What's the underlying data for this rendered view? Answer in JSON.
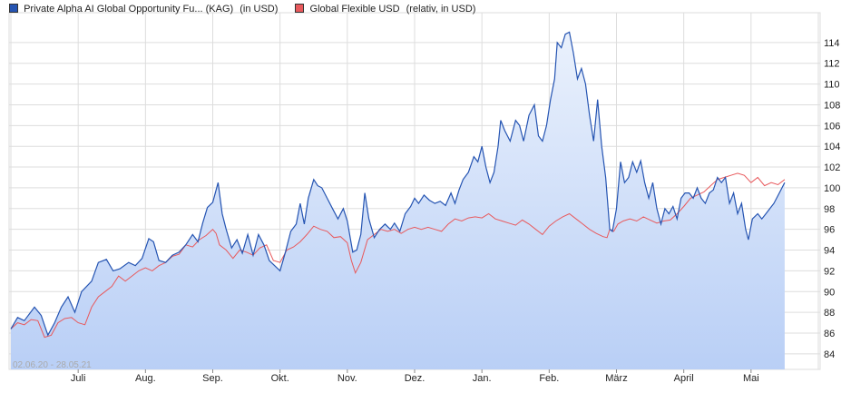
{
  "legend": {
    "series1_name": "Private Alpha AI Global Opportunity Fu... (KAG)",
    "series1_note": "(in USD)",
    "series2_name": "Global Flexible USD",
    "series2_note": "(relativ, in USD)"
  },
  "colors": {
    "series1": "#2554b2",
    "series1_fill_top": "#eaf1fc",
    "series1_fill_bottom": "#b9cff6",
    "series2": "#e8595c",
    "grid": "#dddddd",
    "axis_text": "#222222",
    "date_range_text": "#aaaaaa"
  },
  "chart_data": {
    "type": "line",
    "date_range_label": "02.06.20 - 28.05.21",
    "x_labels": [
      "Juli",
      "Aug.",
      "Sep.",
      "Okt.",
      "Nov.",
      "Dez.",
      "Jan.",
      "Feb.",
      "März",
      "April",
      "Mai"
    ],
    "x_range": [
      0,
      12
    ],
    "ylim": [
      82.5,
      116
    ],
    "y_ticks": [
      84,
      86,
      88,
      90,
      92,
      94,
      96,
      98,
      100,
      102,
      104,
      106,
      108,
      110,
      112,
      114
    ],
    "y_axis_position": "right",
    "grid": true,
    "legend_position": "top-left",
    "series": [
      {
        "name": "Private Alpha AI Global Opportunity Fu... (KAG)",
        "style": "line-with-area",
        "points": [
          [
            0,
            86.4
          ],
          [
            0.1,
            87.5
          ],
          [
            0.2,
            87.2
          ],
          [
            0.35,
            88.5
          ],
          [
            0.45,
            87.7
          ],
          [
            0.55,
            85.8
          ],
          [
            0.65,
            87.0
          ],
          [
            0.75,
            88.5
          ],
          [
            0.85,
            89.5
          ],
          [
            0.95,
            88.0
          ],
          [
            1.05,
            90.0
          ],
          [
            1.2,
            91.0
          ],
          [
            1.3,
            92.8
          ],
          [
            1.42,
            93.1
          ],
          [
            1.52,
            92.0
          ],
          [
            1.62,
            92.2
          ],
          [
            1.75,
            92.8
          ],
          [
            1.85,
            92.5
          ],
          [
            1.95,
            93.2
          ],
          [
            2.05,
            95.1
          ],
          [
            2.12,
            94.8
          ],
          [
            2.2,
            93.0
          ],
          [
            2.3,
            92.8
          ],
          [
            2.4,
            93.5
          ],
          [
            2.5,
            93.8
          ],
          [
            2.6,
            94.5
          ],
          [
            2.7,
            95.5
          ],
          [
            2.78,
            94.8
          ],
          [
            2.85,
            96.6
          ],
          [
            2.92,
            98.1
          ],
          [
            3.0,
            98.6
          ],
          [
            3.08,
            100.5
          ],
          [
            3.14,
            97.5
          ],
          [
            3.2,
            96.0
          ],
          [
            3.28,
            94.2
          ],
          [
            3.36,
            95.0
          ],
          [
            3.44,
            93.7
          ],
          [
            3.52,
            95.5
          ],
          [
            3.6,
            93.5
          ],
          [
            3.68,
            95.5
          ],
          [
            3.76,
            94.5
          ],
          [
            3.84,
            93.0
          ],
          [
            3.92,
            92.5
          ],
          [
            4.0,
            92.0
          ],
          [
            4.08,
            93.8
          ],
          [
            4.16,
            95.8
          ],
          [
            4.24,
            96.5
          ],
          [
            4.3,
            98.5
          ],
          [
            4.36,
            96.5
          ],
          [
            4.42,
            99.0
          ],
          [
            4.5,
            100.8
          ],
          [
            4.56,
            100.2
          ],
          [
            4.62,
            100.0
          ],
          [
            4.7,
            99.0
          ],
          [
            4.78,
            98.0
          ],
          [
            4.86,
            97.0
          ],
          [
            4.94,
            98.0
          ],
          [
            5.0,
            96.8
          ],
          [
            5.08,
            93.8
          ],
          [
            5.14,
            94.0
          ],
          [
            5.2,
            95.5
          ],
          [
            5.26,
            99.5
          ],
          [
            5.32,
            97.0
          ],
          [
            5.4,
            95.2
          ],
          [
            5.48,
            96.0
          ],
          [
            5.56,
            96.5
          ],
          [
            5.64,
            96.0
          ],
          [
            5.7,
            96.6
          ],
          [
            5.78,
            95.8
          ],
          [
            5.86,
            97.5
          ],
          [
            5.94,
            98.2
          ],
          [
            6.0,
            99.0
          ],
          [
            6.06,
            98.5
          ],
          [
            6.14,
            99.3
          ],
          [
            6.22,
            98.8
          ],
          [
            6.3,
            98.5
          ],
          [
            6.38,
            98.7
          ],
          [
            6.46,
            98.3
          ],
          [
            6.54,
            99.5
          ],
          [
            6.6,
            98.5
          ],
          [
            6.66,
            99.8
          ],
          [
            6.72,
            100.8
          ],
          [
            6.8,
            101.5
          ],
          [
            6.88,
            103.0
          ],
          [
            6.94,
            102.5
          ],
          [
            7.0,
            104.0
          ],
          [
            7.06,
            102.0
          ],
          [
            7.12,
            100.5
          ],
          [
            7.18,
            101.5
          ],
          [
            7.24,
            104.0
          ],
          [
            7.28,
            106.5
          ],
          [
            7.34,
            105.5
          ],
          [
            7.42,
            104.5
          ],
          [
            7.5,
            106.5
          ],
          [
            7.56,
            106.0
          ],
          [
            7.62,
            104.5
          ],
          [
            7.7,
            107.0
          ],
          [
            7.78,
            108.0
          ],
          [
            7.84,
            105.0
          ],
          [
            7.9,
            104.5
          ],
          [
            7.96,
            106.0
          ],
          [
            8.02,
            108.5
          ],
          [
            8.08,
            110.5
          ],
          [
            8.12,
            114.0
          ],
          [
            8.18,
            113.5
          ],
          [
            8.24,
            114.8
          ],
          [
            8.3,
            115.0
          ],
          [
            8.36,
            113.0
          ],
          [
            8.42,
            110.5
          ],
          [
            8.48,
            111.5
          ],
          [
            8.54,
            110.0
          ],
          [
            8.6,
            107.0
          ],
          [
            8.66,
            104.5
          ],
          [
            8.72,
            108.5
          ],
          [
            8.78,
            104.0
          ],
          [
            8.84,
            101.0
          ],
          [
            8.9,
            96.0
          ],
          [
            8.94,
            95.8
          ],
          [
            9.0,
            98.0
          ],
          [
            9.06,
            102.5
          ],
          [
            9.12,
            100.5
          ],
          [
            9.18,
            101.0
          ],
          [
            9.24,
            102.5
          ],
          [
            9.3,
            101.5
          ],
          [
            9.36,
            102.6
          ],
          [
            9.42,
            100.5
          ],
          [
            9.48,
            99.0
          ],
          [
            9.54,
            100.5
          ],
          [
            9.6,
            98.0
          ],
          [
            9.66,
            96.5
          ],
          [
            9.72,
            98.0
          ],
          [
            9.78,
            97.5
          ],
          [
            9.84,
            98.2
          ],
          [
            9.9,
            97.0
          ],
          [
            9.96,
            99.0
          ],
          [
            10.02,
            99.5
          ],
          [
            10.08,
            99.5
          ],
          [
            10.14,
            99.0
          ],
          [
            10.2,
            100.0
          ],
          [
            10.26,
            99.0
          ],
          [
            10.32,
            98.5
          ],
          [
            10.38,
            99.5
          ],
          [
            10.44,
            99.8
          ],
          [
            10.5,
            101.0
          ],
          [
            10.56,
            100.5
          ],
          [
            10.62,
            101.0
          ],
          [
            10.68,
            98.5
          ],
          [
            10.74,
            99.5
          ],
          [
            10.8,
            97.5
          ],
          [
            10.86,
            98.5
          ],
          [
            10.92,
            96.0
          ],
          [
            10.96,
            95.0
          ],
          [
            11.02,
            97.0
          ],
          [
            11.1,
            97.5
          ],
          [
            11.16,
            97.0
          ],
          [
            11.22,
            97.5
          ],
          [
            11.28,
            98.0
          ],
          [
            11.34,
            98.5
          ],
          [
            11.42,
            99.5
          ],
          [
            11.5,
            100.5
          ]
        ]
      },
      {
        "name": "Global Flexible USD",
        "style": "line",
        "points": [
          [
            0,
            86.4
          ],
          [
            0.1,
            87.0
          ],
          [
            0.2,
            86.8
          ],
          [
            0.3,
            87.3
          ],
          [
            0.4,
            87.2
          ],
          [
            0.5,
            85.6
          ],
          [
            0.6,
            85.8
          ],
          [
            0.7,
            87.0
          ],
          [
            0.8,
            87.4
          ],
          [
            0.9,
            87.5
          ],
          [
            1.0,
            87.0
          ],
          [
            1.1,
            86.8
          ],
          [
            1.2,
            88.5
          ],
          [
            1.3,
            89.5
          ],
          [
            1.4,
            90.0
          ],
          [
            1.5,
            90.5
          ],
          [
            1.6,
            91.5
          ],
          [
            1.7,
            91.0
          ],
          [
            1.8,
            91.5
          ],
          [
            1.9,
            92.0
          ],
          [
            2.0,
            92.3
          ],
          [
            2.1,
            92.0
          ],
          [
            2.2,
            92.5
          ],
          [
            2.3,
            92.8
          ],
          [
            2.4,
            93.4
          ],
          [
            2.5,
            93.6
          ],
          [
            2.6,
            94.5
          ],
          [
            2.7,
            94.3
          ],
          [
            2.8,
            95.0
          ],
          [
            2.9,
            95.4
          ],
          [
            3.0,
            96.0
          ],
          [
            3.05,
            95.6
          ],
          [
            3.1,
            94.5
          ],
          [
            3.2,
            94.0
          ],
          [
            3.3,
            93.2
          ],
          [
            3.4,
            94.0
          ],
          [
            3.5,
            93.8
          ],
          [
            3.6,
            93.5
          ],
          [
            3.7,
            94.2
          ],
          [
            3.8,
            94.5
          ],
          [
            3.9,
            93.0
          ],
          [
            4.0,
            92.8
          ],
          [
            4.1,
            94.0
          ],
          [
            4.2,
            94.3
          ],
          [
            4.3,
            94.8
          ],
          [
            4.4,
            95.5
          ],
          [
            4.5,
            96.3
          ],
          [
            4.6,
            96.0
          ],
          [
            4.7,
            95.8
          ],
          [
            4.8,
            95.2
          ],
          [
            4.9,
            95.3
          ],
          [
            5.0,
            94.7
          ],
          [
            5.06,
            93.0
          ],
          [
            5.12,
            91.8
          ],
          [
            5.2,
            92.8
          ],
          [
            5.3,
            95.0
          ],
          [
            5.4,
            95.5
          ],
          [
            5.5,
            96.0
          ],
          [
            5.6,
            95.8
          ],
          [
            5.7,
            96.0
          ],
          [
            5.8,
            95.6
          ],
          [
            5.9,
            96.0
          ],
          [
            6.0,
            96.2
          ],
          [
            6.1,
            96.0
          ],
          [
            6.2,
            96.2
          ],
          [
            6.3,
            96.0
          ],
          [
            6.4,
            95.8
          ],
          [
            6.5,
            96.5
          ],
          [
            6.6,
            97.0
          ],
          [
            6.7,
            96.8
          ],
          [
            6.8,
            97.1
          ],
          [
            6.9,
            97.2
          ],
          [
            7.0,
            97.1
          ],
          [
            7.1,
            97.5
          ],
          [
            7.2,
            97.0
          ],
          [
            7.3,
            96.8
          ],
          [
            7.4,
            96.6
          ],
          [
            7.5,
            96.4
          ],
          [
            7.6,
            96.9
          ],
          [
            7.7,
            96.5
          ],
          [
            7.8,
            96.0
          ],
          [
            7.9,
            95.5
          ],
          [
            8.0,
            96.3
          ],
          [
            8.1,
            96.8
          ],
          [
            8.2,
            97.2
          ],
          [
            8.3,
            97.5
          ],
          [
            8.4,
            97.0
          ],
          [
            8.5,
            96.5
          ],
          [
            8.6,
            96.0
          ],
          [
            8.7,
            95.6
          ],
          [
            8.8,
            95.3
          ],
          [
            8.86,
            95.2
          ],
          [
            8.9,
            96.0
          ],
          [
            8.96,
            95.8
          ],
          [
            9.02,
            96.5
          ],
          [
            9.1,
            96.8
          ],
          [
            9.2,
            97.0
          ],
          [
            9.3,
            96.8
          ],
          [
            9.4,
            97.2
          ],
          [
            9.5,
            96.9
          ],
          [
            9.6,
            96.6
          ],
          [
            9.7,
            96.8
          ],
          [
            9.8,
            96.9
          ],
          [
            9.9,
            97.5
          ],
          [
            10.0,
            98.2
          ],
          [
            10.1,
            99.0
          ],
          [
            10.2,
            99.3
          ],
          [
            10.3,
            99.6
          ],
          [
            10.4,
            100.2
          ],
          [
            10.5,
            100.8
          ],
          [
            10.6,
            101.0
          ],
          [
            10.7,
            101.2
          ],
          [
            10.8,
            101.4
          ],
          [
            10.9,
            101.2
          ],
          [
            11.0,
            100.5
          ],
          [
            11.1,
            101.0
          ],
          [
            11.2,
            100.2
          ],
          [
            11.3,
            100.5
          ],
          [
            11.4,
            100.3
          ],
          [
            11.5,
            100.8
          ]
        ]
      }
    ]
  }
}
